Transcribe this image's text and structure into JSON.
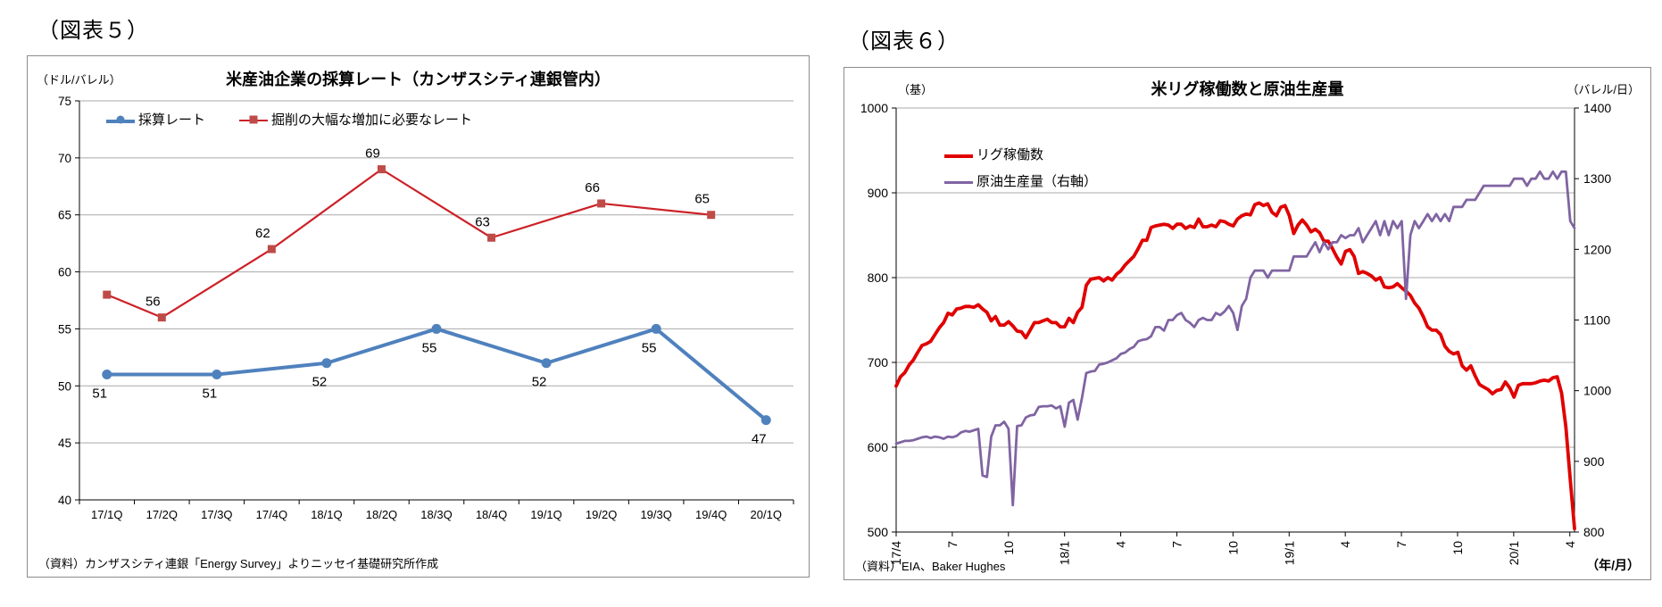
{
  "fig5_label": "（図表５）",
  "fig6_label": "（図表６）",
  "chart_data": [
    {
      "type": "line",
      "title": "米産油企業の採算レート（カンザスシティ連銀管内）",
      "unit_y": "（ドル/バレル）",
      "source": "（資料）カンザスシティ連銀「Energy Survey」よりニッセイ基礎研究所作成",
      "categories": [
        "17/1Q",
        "17/2Q",
        "17/3Q",
        "17/4Q",
        "18/1Q",
        "18/2Q",
        "18/3Q",
        "18/4Q",
        "19/1Q",
        "19/2Q",
        "19/3Q",
        "19/4Q",
        "20/1Q"
      ],
      "ylim": [
        40,
        75
      ],
      "y_step": 5,
      "grid_color": "#a9a9a9",
      "legend_position": "top-left-horizontal",
      "series": [
        {
          "name": "採算レート",
          "color": "#4F81BD",
          "marker": "circle",
          "line_width": 4,
          "values": [
            51,
            null,
            51,
            null,
            52,
            null,
            55,
            null,
            52,
            null,
            55,
            null,
            47
          ],
          "labels": [
            "51",
            null,
            "51",
            null,
            "52",
            null,
            "55",
            null,
            "52",
            null,
            "55",
            null,
            "47"
          ]
        },
        {
          "name": "掘削の大幅な増加に必要なレート",
          "color": "#CC2127",
          "marker_color": "#BE4B48",
          "marker": "square",
          "line_width": 2.2,
          "values": [
            58,
            56,
            null,
            62,
            null,
            69,
            null,
            63,
            null,
            66,
            null,
            65,
            null
          ],
          "labels": [
            null,
            "56",
            null,
            "62",
            null,
            "69",
            null,
            "63",
            null,
            "66",
            null,
            "65",
            null
          ]
        }
      ]
    },
    {
      "type": "line",
      "title": "米リグ稼働数と原油生産量",
      "unit_left": "（基）",
      "unit_right": "（バレル/日）",
      "unit_x": "（年/月）",
      "source": "（資料）EIA、Baker Hughes",
      "ylim_left": [
        500,
        1000
      ],
      "ylim_right": [
        800,
        1400
      ],
      "y_step": 100,
      "grid_color": "#a9a9a9",
      "x_ticks": [
        "17/4",
        "7",
        "10",
        "18/1",
        "4",
        "7",
        "10",
        "19/1",
        "4",
        "7",
        "10",
        "20/1",
        "4"
      ],
      "x_tick_months": [
        0,
        3,
        6,
        9,
        12,
        15,
        18,
        21,
        24,
        27,
        30,
        33,
        36
      ],
      "months_total": 36.25,
      "legend_position": "top-left-vertical",
      "series": [
        {
          "name": "リグ稼働数",
          "axis": "left",
          "color": "#E00000",
          "line_width": 3.8,
          "values": [
            672,
            683,
            688,
            697,
            703,
            712,
            720,
            722,
            725,
            733,
            741,
            747,
            758,
            756,
            763,
            764,
            766,
            766,
            765,
            768,
            763,
            759,
            749,
            754,
            744,
            744,
            748,
            743,
            737,
            736,
            729,
            738,
            747,
            747,
            749,
            751,
            747,
            747,
            742,
            742,
            752,
            747,
            759,
            765,
            791,
            798,
            799,
            800,
            796,
            800,
            797,
            804,
            808,
            815,
            820,
            825,
            834,
            844,
            844,
            859,
            861,
            862,
            863,
            862,
            858,
            863,
            863,
            858,
            861,
            859,
            869,
            860,
            860,
            862,
            860,
            867,
            866,
            863,
            861,
            869,
            873,
            875,
            874,
            886,
            888,
            885,
            887,
            877,
            873,
            883,
            885,
            873,
            852,
            862,
            868,
            862,
            854,
            857,
            853,
            843,
            843,
            834,
            824,
            816,
            831,
            833,
            825,
            805,
            807,
            805,
            802,
            797,
            800,
            789,
            788,
            789,
            793,
            788,
            784,
            779,
            770,
            764,
            754,
            742,
            738,
            738,
            733,
            719,
            713,
            710,
            712,
            696,
            691,
            696,
            684,
            674,
            671,
            668,
            663,
            667,
            668,
            677,
            670,
            659,
            673,
            675,
            675,
            675,
            676,
            678,
            679,
            678,
            682,
            683,
            664,
            624,
            562,
            504
          ]
        },
        {
          "name": "原油生産量（右軸）",
          "axis": "right",
          "color": "#8064A2",
          "line_width": 2.8,
          "values": [
            925,
            927,
            929,
            929,
            930,
            932,
            934,
            935,
            933,
            935,
            934,
            932,
            935,
            934,
            936,
            941,
            943,
            942,
            944,
            946,
            880,
            878,
            935,
            951,
            951,
            956,
            946,
            838,
            950,
            951,
            962,
            965,
            966,
            977,
            978,
            978,
            979,
            975,
            978,
            949,
            983,
            987,
            959,
            990,
            1025,
            1027,
            1028,
            1037,
            1038,
            1040,
            1043,
            1046,
            1052,
            1054,
            1059,
            1062,
            1070,
            1072,
            1073,
            1077,
            1090,
            1090,
            1085,
            1100,
            1100,
            1107,
            1110,
            1100,
            1096,
            1090,
            1100,
            1103,
            1100,
            1100,
            1110,
            1107,
            1112,
            1120,
            1110,
            1086,
            1120,
            1130,
            1160,
            1170,
            1170,
            1170,
            1160,
            1170,
            1170,
            1170,
            1170,
            1170,
            1190,
            1190,
            1190,
            1190,
            1200,
            1210,
            1196,
            1210,
            1200,
            1210,
            1210,
            1220,
            1216,
            1220,
            1220,
            1230,
            1210,
            1220,
            1230,
            1240,
            1220,
            1240,
            1220,
            1240,
            1230,
            1240,
            1130,
            1220,
            1240,
            1230,
            1240,
            1250,
            1240,
            1250,
            1240,
            1250,
            1240,
            1260,
            1260,
            1260,
            1270,
            1270,
            1270,
            1280,
            1290,
            1290,
            1290,
            1290,
            1290,
            1290,
            1290,
            1300,
            1300,
            1300,
            1290,
            1300,
            1300,
            1310,
            1300,
            1300,
            1310,
            1300,
            1310,
            1310,
            1240,
            1230
          ]
        }
      ]
    }
  ]
}
